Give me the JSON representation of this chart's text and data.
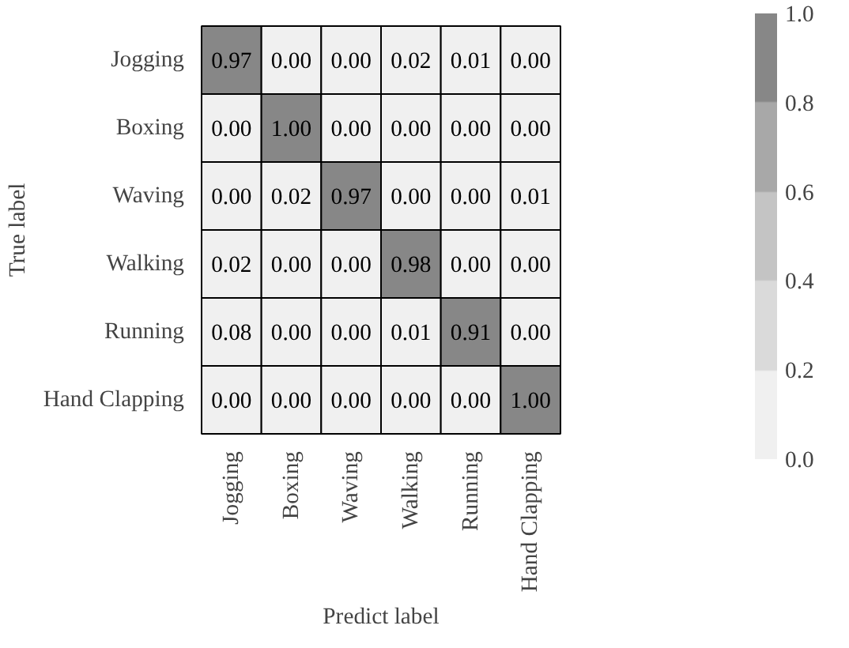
{
  "chart_data": {
    "type": "heatmap",
    "xlabel": "Predict label",
    "ylabel": "True label",
    "categories": [
      "Jogging",
      "Boxing",
      "Waving",
      "Walking",
      "Running",
      "Hand Clapping"
    ],
    "y_categories": [
      "Jogging",
      "Boxing",
      "Waving",
      "Walking",
      "Running",
      "Hand Clapping"
    ],
    "cells": [
      [
        0.97,
        0,
        0,
        0.02,
        0.01,
        0
      ],
      [
        0,
        1,
        0,
        0,
        0,
        0
      ],
      [
        0,
        0.02,
        0.97,
        0,
        0,
        0.01
      ],
      [
        0.02,
        0,
        0,
        0.98,
        0,
        0
      ],
      [
        0.08,
        0,
        0,
        0.01,
        0.91,
        0
      ],
      [
        0,
        0,
        0,
        0,
        0,
        1
      ]
    ],
    "cell_labels": [
      [
        "0.97",
        "0.00",
        "0.00",
        "0.02",
        "0.01",
        "0.00"
      ],
      [
        "0.00",
        "1.00",
        "0.00",
        "0.00",
        "0.00",
        "0.00"
      ],
      [
        "0.00",
        "0.02",
        "0.97",
        "0.00",
        "0.00",
        "0.01"
      ],
      [
        "0.02",
        "0.00",
        "0.00",
        "0.98",
        "0.00",
        "0.00"
      ],
      [
        "0.08",
        "0.00",
        "0.00",
        "0.01",
        "0.91",
        "0.00"
      ],
      [
        "0.00",
        "0.00",
        "0.00",
        "0.00",
        "0.00",
        "1.00"
      ]
    ],
    "colors": [
      "#f0f0f0",
      "#dadada",
      "#c4c4c4",
      "#a8a8a8",
      "#878787"
    ],
    "clim": [
      0,
      1
    ],
    "cticks": [
      {
        "value": 0,
        "label": "0.0"
      },
      {
        "value": 0.2,
        "label": "0.2"
      },
      {
        "value": 0.4,
        "label": "0.4"
      },
      {
        "value": 0.6,
        "label": "0.6"
      },
      {
        "value": 0.8,
        "label": "0.8"
      },
      {
        "value": 1,
        "label": "1.0"
      }
    ]
  }
}
